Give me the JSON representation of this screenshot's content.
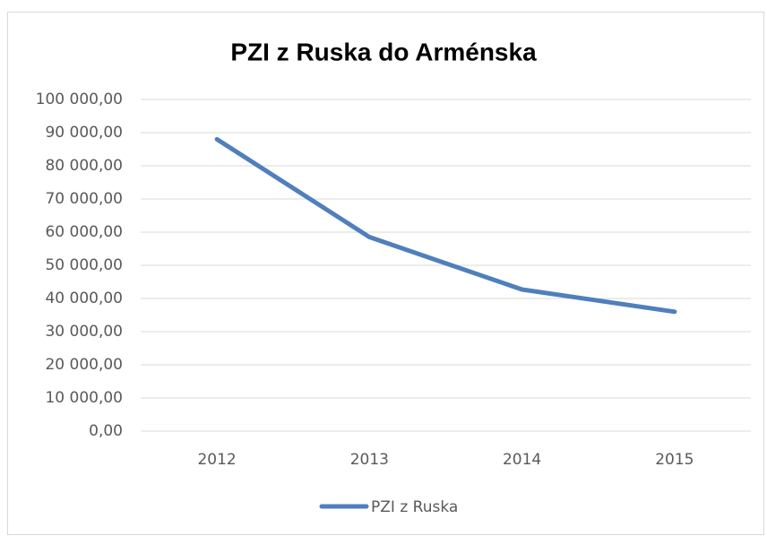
{
  "chart_data": {
    "type": "line",
    "title": "PZI z Ruska do Arménska",
    "categories": [
      "2012",
      "2013",
      "2014",
      "2015"
    ],
    "series": [
      {
        "name": "PZI z Ruska",
        "color": "#4f7fbc",
        "values": [
          88000,
          58500,
          42700,
          36000
        ]
      }
    ],
    "ylim": [
      0,
      100000
    ],
    "yticks": [
      {
        "value": 0,
        "label": "0,00"
      },
      {
        "value": 10000,
        "label": "10 000,00"
      },
      {
        "value": 20000,
        "label": "20 000,00"
      },
      {
        "value": 30000,
        "label": "30 000,00"
      },
      {
        "value": 40000,
        "label": "40 000,00"
      },
      {
        "value": 50000,
        "label": "50 000,00"
      },
      {
        "value": 60000,
        "label": "60 000,00"
      },
      {
        "value": 70000,
        "label": "70 000,00"
      },
      {
        "value": 80000,
        "label": "80 000,00"
      },
      {
        "value": 90000,
        "label": "90 000,00"
      },
      {
        "value": 100000,
        "label": "100 000,00"
      }
    ],
    "grid": true,
    "legend": "bottom"
  }
}
